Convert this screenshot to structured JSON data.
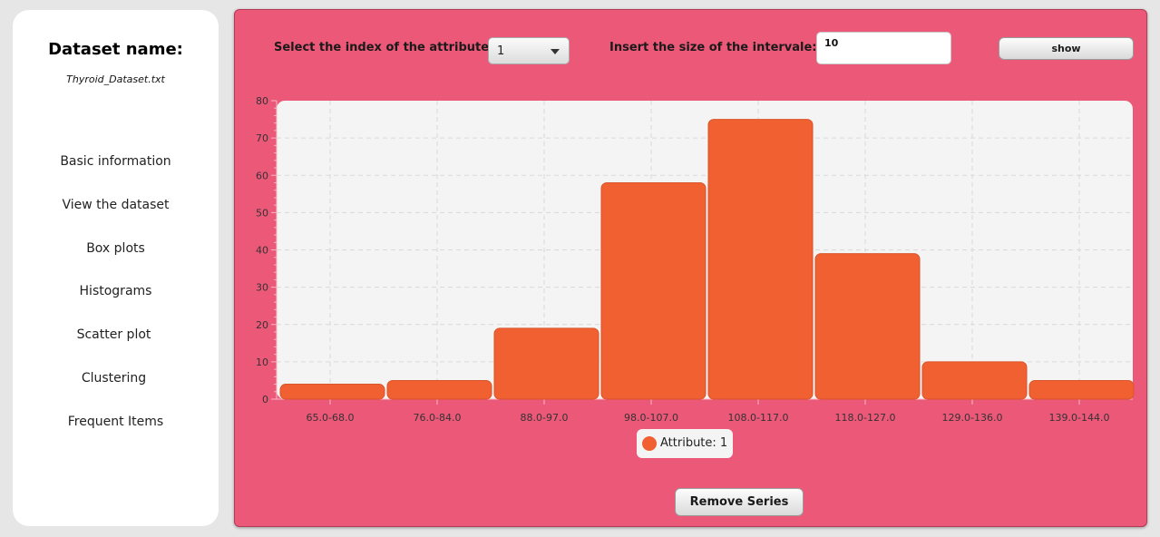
{
  "sidebar": {
    "heading": "Dataset name:",
    "file_name": "Thyroid_Dataset.txt",
    "items": [
      {
        "label": "Basic information"
      },
      {
        "label": "View the dataset"
      },
      {
        "label": "Box plots"
      },
      {
        "label": "Histograms"
      },
      {
        "label": "Scatter plot"
      },
      {
        "label": "Clustering"
      },
      {
        "label": "Frequent Items"
      }
    ]
  },
  "controls": {
    "attribute_label": "Select the index of the attribute:",
    "attribute_value": "1",
    "interval_label": "Insert the size of the intervale:",
    "interval_value": "10",
    "show_label": "show",
    "remove_label": "Remove Series"
  },
  "legend": {
    "label": "Attribute: 1"
  },
  "colors": {
    "panel_background": "#ec5878",
    "bar_color": "#f06030",
    "plot_background": "#f4f4f4"
  },
  "chart_data": {
    "type": "bar",
    "categories": [
      "65.0-68.0",
      "76.0-84.0",
      "88.0-97.0",
      "98.0-107.0",
      "108.0-117.0",
      "118.0-127.0",
      "129.0-136.0",
      "139.0-144.0"
    ],
    "series": [
      {
        "name": "Attribute: 1",
        "values": [
          4,
          5,
          19,
          58,
          75,
          39,
          10,
          5
        ]
      }
    ],
    "ylim": [
      0,
      80
    ],
    "yticks": [
      0,
      10,
      20,
      30,
      40,
      50,
      60,
      70,
      80
    ],
    "grid": true,
    "legend_position": "bottom"
  }
}
